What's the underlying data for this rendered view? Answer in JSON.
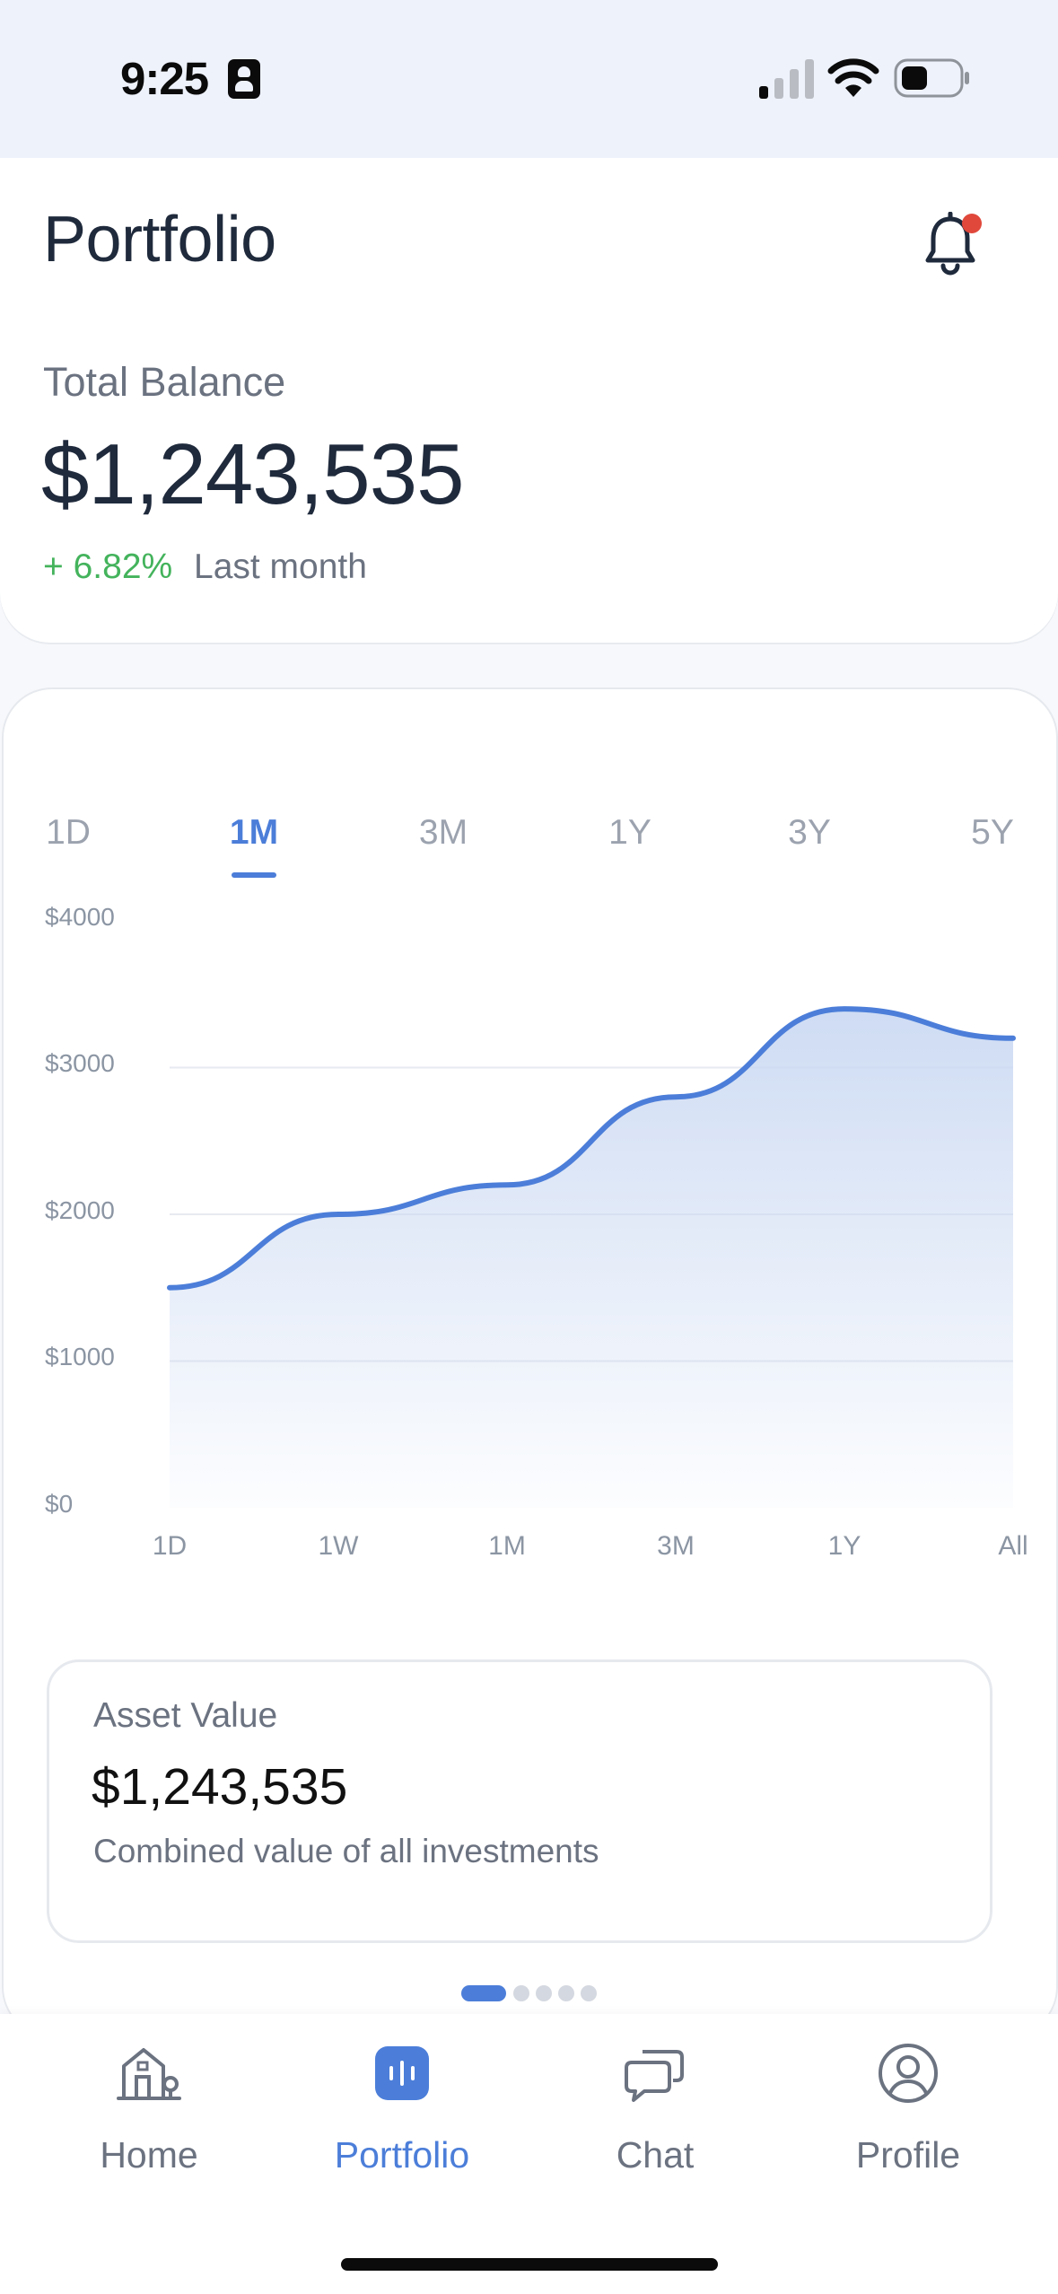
{
  "status_bar": {
    "time": "9:25",
    "icons": [
      "sim-card-icon",
      "cellular-signal-icon",
      "wifi-icon",
      "battery-icon"
    ]
  },
  "header": {
    "title": "Portfolio",
    "notification_icon": "bell-icon",
    "has_unread": true
  },
  "balance": {
    "label": "Total Balance",
    "value": "$1,243,535",
    "change_pct": "+ 6.82%",
    "change_period": "Last month"
  },
  "range_tabs": {
    "items": [
      "1D",
      "1M",
      "3M",
      "1Y",
      "3Y",
      "5Y"
    ],
    "selected": "1M"
  },
  "chart_data": {
    "type": "area",
    "x": [
      "1D",
      "1W",
      "1M",
      "3M",
      "1Y",
      "All"
    ],
    "y_tick_labels": [
      "$4000",
      "$3000",
      "$2000",
      "$1000",
      "$0"
    ],
    "ylim": [
      0,
      4000
    ],
    "series": [
      {
        "values": [
          1500,
          2000,
          2200,
          2800,
          3400,
          3200
        ]
      }
    ],
    "grid": true,
    "line_color": "#4c7ed9",
    "fill_color": "#c9d8f2"
  },
  "asset_card": {
    "label": "Asset Value",
    "value": "$1,243,535",
    "description": "Combined value of all investments"
  },
  "pager": {
    "count": 5,
    "active_index": 0
  },
  "tab_bar": {
    "items": [
      {
        "label": "Home",
        "icon": "home-icon"
      },
      {
        "label": "Portfolio",
        "icon": "portfolio-icon"
      },
      {
        "label": "Chat",
        "icon": "chat-icon"
      },
      {
        "label": "Profile",
        "icon": "profile-icon"
      }
    ],
    "active_index": 1
  },
  "colors": {
    "accent": "#4c7ed9",
    "positive": "#44b35c",
    "badge": "#e0483b"
  }
}
